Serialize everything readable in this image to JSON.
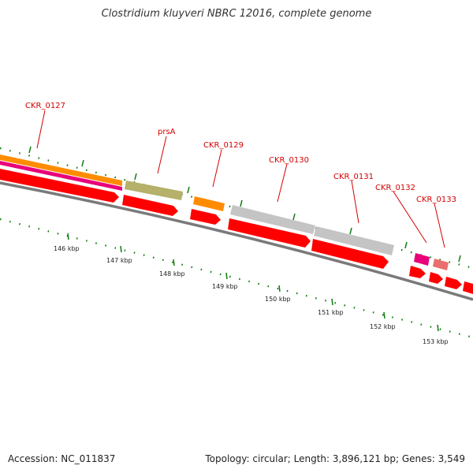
{
  "title": "Clostridium kluyveri NBRC 12016, complete genome",
  "footer": {
    "accession": "Accession: NC_011837",
    "topology": "Topology: circular; Length: 3,896,121 bp; Genes: 3,549"
  },
  "colors": {
    "cds": "#ff0000",
    "orange": "#ff8c00",
    "magenta": "#e8007a",
    "olive": "#b5b06a",
    "gray_gene": "#c4c4c4",
    "pink": "#ea6e6e",
    "backbone": "#7a7a7a",
    "tick": "#0a7a0a",
    "label": "#d40000"
  },
  "gene_labels": [
    {
      "id": "g127",
      "text": "CKR_0127"
    },
    {
      "id": "g128",
      "text": "prsA"
    },
    {
      "id": "g129",
      "text": "CKR_0129"
    },
    {
      "id": "g130",
      "text": "CKR_0130"
    },
    {
      "id": "g131",
      "text": "CKR_0131"
    },
    {
      "id": "g132",
      "text": "CKR_0132"
    },
    {
      "id": "g133",
      "text": "CKR_0133"
    }
  ],
  "kbp_labels": [
    "146 kbp",
    "147 kbp",
    "148 kbp",
    "149 kbp",
    "150 kbp",
    "151 kbp",
    "152 kbp",
    "153 kbp"
  ]
}
